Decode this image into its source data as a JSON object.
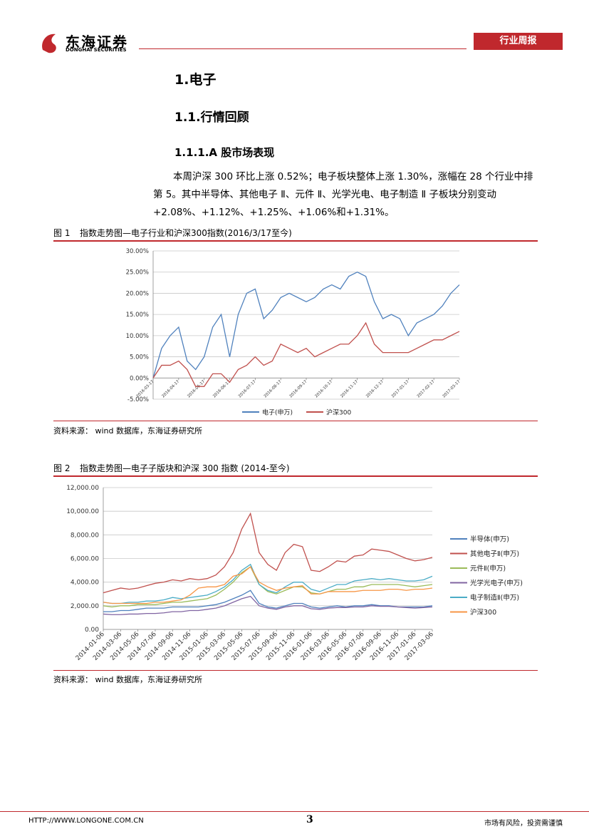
{
  "header": {
    "logo_cn": "东海证券",
    "logo_en": "DONGHAI SECURITIES",
    "tag": "行业周报"
  },
  "headings": [
    "1.电子",
    "1.1.行情回顾",
    "1.1.1.A 股市场表现"
  ],
  "paragraph": "本周沪深 300 环比上涨 0.52%；电子板块整体上涨 1.30%，涨幅在 28 个行业中排第 5。其中半导体、其他电子 Ⅱ、元件 Ⅱ、光学光电、电子制造 Ⅱ 子板块分别变动+2.08%、+1.12%、+1.25%、+1.06%和+1.31%。",
  "figures": [
    {
      "number": "图 1",
      "caption": "指数走势图—电子行业和沪深300指数(2016/3/17至今)",
      "source": "资料来源：  wind 数据库，东海证券研究所"
    },
    {
      "number": "图 2",
      "caption": "指数走势图—电子子版块和沪深 300 指数 (2014-至今)",
      "source": "资料来源：  wind 数据库，东海证券研究所"
    }
  ],
  "footer": {
    "url": "HTTP://WWW.LONGONE.COM.CN",
    "page": "3",
    "disclaimer": "市场有风险，投资需谨慎"
  },
  "chart_data": [
    {
      "type": "line",
      "grid": true,
      "legend": "bottom",
      "categories": [
        "2016-03-17",
        null,
        null,
        "2016-04-17",
        null,
        null,
        "2016-05-17",
        null,
        null,
        "2016-06-17",
        null,
        null,
        "2016-07-17",
        null,
        null,
        "2016-08-17",
        null,
        null,
        "2016-09-17",
        null,
        null,
        "2016-10-17",
        null,
        null,
        "2016-11-17",
        null,
        null,
        "2016-12-17",
        null,
        null,
        "2017-01-17",
        null,
        null,
        "2017-02-17",
        null,
        null,
        "2017-03-17"
      ],
      "ylim": [
        -5,
        30
      ],
      "yticks": [
        {
          "value": -5,
          "label": "-5.00%"
        },
        {
          "value": 0,
          "label": "0.00%"
        },
        {
          "value": 5,
          "label": "5.00%"
        },
        {
          "value": 10,
          "label": "10.00%"
        },
        {
          "value": 15,
          "label": "15.00%"
        },
        {
          "value": 20,
          "label": "20.00%"
        },
        {
          "value": 25,
          "label": "25.00%"
        },
        {
          "value": 30,
          "label": "30.00%"
        }
      ],
      "series": [
        {
          "name": "电子(申万)",
          "color": "#4f81bd",
          "values": [
            0,
            7,
            10,
            12,
            4,
            2,
            5,
            12,
            15,
            5,
            15,
            20,
            21,
            14,
            16,
            19,
            20,
            19,
            18,
            19,
            21,
            22,
            21,
            24,
            25,
            24,
            18,
            14,
            15,
            14,
            10,
            13,
            14,
            15,
            17,
            20,
            22
          ]
        },
        {
          "name": "沪深300",
          "color": "#c0504d",
          "values": [
            0,
            3,
            3,
            4,
            2,
            -2,
            -2,
            1,
            1,
            -1,
            2,
            3,
            5,
            3,
            4,
            8,
            7,
            6,
            7,
            5,
            6,
            7,
            8,
            8,
            10,
            13,
            8,
            6,
            6,
            6,
            6,
            7,
            8,
            9,
            9,
            10,
            11
          ]
        }
      ]
    },
    {
      "type": "line",
      "grid": true,
      "legend": "right",
      "categories": [
        "2014-01-06",
        null,
        "2014-03-06",
        null,
        "2014-05-06",
        null,
        "2014-07-06",
        null,
        "2014-09-06",
        null,
        "2014-11-06",
        null,
        "2015-01-06",
        null,
        "2015-03-06",
        null,
        "2015-05-06",
        null,
        "2015-07-06",
        null,
        "2015-09-06",
        null,
        "2015-11-06",
        null,
        "2016-01-06",
        null,
        "2016-03-06",
        null,
        "2016-05-06",
        null,
        "2016-07-06",
        null,
        "2016-09-06",
        null,
        "2016-11-06",
        null,
        "2017-01-06",
        null,
        "2017-03-06"
      ],
      "ylim": [
        0,
        12000
      ],
      "yticks": [
        {
          "value": 0,
          "label": "0.00"
        },
        {
          "value": 2000,
          "label": "2,000.00"
        },
        {
          "value": 4000,
          "label": "4,000.00"
        },
        {
          "value": 6000,
          "label": "6,000.00"
        },
        {
          "value": 8000,
          "label": "8,000.00"
        },
        {
          "value": 10000,
          "label": "10,000.00"
        },
        {
          "value": 12000,
          "label": "12,000.00"
        }
      ],
      "series": [
        {
          "name": "半导体(申万)",
          "color": "#4f81bd",
          "values": [
            1500,
            1500,
            1600,
            1600,
            1700,
            1800,
            1800,
            1800,
            1900,
            1900,
            1900,
            1900,
            2000,
            2100,
            2300,
            2600,
            2900,
            3300,
            2200,
            1900,
            1800,
            2000,
            2200,
            2200,
            1900,
            1800,
            1900,
            2000,
            1900,
            2000,
            2000,
            2100,
            2000,
            2000,
            1900,
            1900,
            1900,
            1900,
            2000
          ]
        },
        {
          "name": "其他电子Ⅱ(申万)",
          "color": "#c0504d",
          "values": [
            3100,
            3300,
            3500,
            3400,
            3500,
            3700,
            3900,
            4000,
            4200,
            4100,
            4300,
            4200,
            4300,
            4600,
            5300,
            6500,
            8500,
            9800,
            6500,
            5500,
            5000,
            6500,
            7200,
            7000,
            5000,
            4900,
            5300,
            5800,
            5700,
            6200,
            6300,
            6800,
            6700,
            6600,
            6300,
            6000,
            5800,
            5900,
            6100
          ]
        },
        {
          "name": "元件Ⅱ(申万)",
          "color": "#9bbb59",
          "values": [
            2000,
            1900,
            2000,
            2000,
            2100,
            2100,
            2100,
            2200,
            2300,
            2300,
            2400,
            2500,
            2600,
            2900,
            3400,
            4000,
            4800,
            5300,
            3800,
            3200,
            3000,
            3300,
            3600,
            3600,
            3100,
            3000,
            3200,
            3400,
            3400,
            3600,
            3600,
            3800,
            3800,
            3800,
            3800,
            3700,
            3600,
            3700,
            3800
          ]
        },
        {
          "name": "光学光电子(申万)",
          "color": "#8064a2",
          "values": [
            1300,
            1250,
            1250,
            1300,
            1300,
            1350,
            1350,
            1400,
            1500,
            1500,
            1600,
            1600,
            1700,
            1800,
            2000,
            2300,
            2600,
            2800,
            2000,
            1800,
            1700,
            1900,
            2000,
            2000,
            1750,
            1700,
            1800,
            1850,
            1850,
            1900,
            1900,
            2000,
            1950,
            1950,
            1900,
            1850,
            1800,
            1850,
            1900
          ]
        },
        {
          "name": "电子制造Ⅱ(申万)",
          "color": "#4bacc6",
          "values": [
            2300,
            2200,
            2200,
            2300,
            2300,
            2400,
            2400,
            2500,
            2700,
            2600,
            2700,
            2800,
            2900,
            3200,
            3600,
            4200,
            5000,
            5500,
            3800,
            3300,
            3100,
            3600,
            4000,
            4000,
            3400,
            3200,
            3500,
            3800,
            3800,
            4100,
            4200,
            4300,
            4200,
            4300,
            4200,
            4100,
            4100,
            4200,
            4500
          ]
        },
        {
          "name": "沪深300",
          "color": "#f79646",
          "values": [
            2300,
            2200,
            2200,
            2200,
            2200,
            2200,
            2300,
            2300,
            2400,
            2500,
            2900,
            3500,
            3600,
            3600,
            3800,
            4500,
            4700,
            5300,
            4000,
            3600,
            3300,
            3500,
            3600,
            3700,
            3000,
            3000,
            3200,
            3200,
            3200,
            3200,
            3300,
            3300,
            3300,
            3400,
            3400,
            3300,
            3400,
            3400,
            3500
          ]
        }
      ]
    }
  ]
}
